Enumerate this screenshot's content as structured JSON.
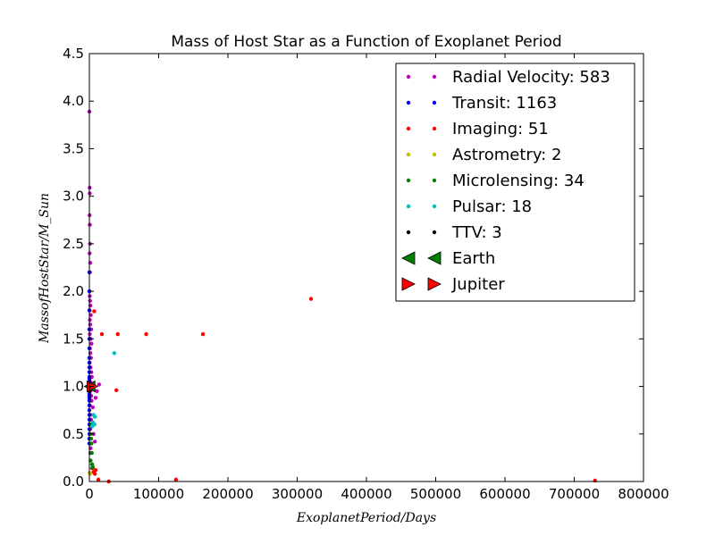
{
  "chart_data": {
    "type": "scatter",
    "title": "Mass of Host Star as a Function of Exoplanet Period",
    "xlabel": "ExoplanetPeriod/Days",
    "ylabel": "MassofHostStar/M_Sun",
    "xlim": [
      0,
      800000
    ],
    "ylim": [
      0.0,
      4.5
    ],
    "grid": false,
    "legend_position": "top-right",
    "x_ticks": [
      0,
      100000,
      200000,
      300000,
      400000,
      500000,
      600000,
      700000,
      800000
    ],
    "x_tick_labels": [
      "0",
      "100000",
      "200000",
      "300000",
      "400000",
      "500000",
      "600000",
      "700000",
      "800000"
    ],
    "y_ticks": [
      0.0,
      0.5,
      1.0,
      1.5,
      2.0,
      2.5,
      3.0,
      3.5,
      4.0,
      4.5
    ],
    "y_tick_labels": [
      "0.0",
      "0.5",
      "1.0",
      "1.5",
      "2.0",
      "2.5",
      "3.0",
      "3.5",
      "4.0",
      "4.5"
    ],
    "series": [
      {
        "name": "Radial Velocity",
        "legend_label": "Radial Velocity: 583",
        "color": "#bf00bf",
        "marker": "circle",
        "points": [
          [
            50,
            3.89
          ],
          [
            500,
            3.09
          ],
          [
            600,
            3.03
          ],
          [
            350,
            2.8
          ],
          [
            700,
            2.7
          ],
          [
            900,
            2.5
          ],
          [
            400,
            2.4
          ],
          [
            1200,
            2.3
          ],
          [
            800,
            2.2
          ],
          [
            300,
            2.0
          ],
          [
            600,
            1.95
          ],
          [
            1000,
            1.9
          ],
          [
            1500,
            1.85
          ],
          [
            450,
            1.8
          ],
          [
            2000,
            1.75
          ],
          [
            800,
            1.7
          ],
          [
            1200,
            1.65
          ],
          [
            2500,
            1.6
          ],
          [
            650,
            1.55
          ],
          [
            1800,
            1.5
          ],
          [
            3000,
            1.45
          ],
          [
            900,
            1.4
          ],
          [
            1400,
            1.35
          ],
          [
            2200,
            1.3
          ],
          [
            500,
            1.25
          ],
          [
            1700,
            1.2
          ],
          [
            2800,
            1.15
          ],
          [
            3500,
            1.1
          ],
          [
            1000,
            1.05
          ],
          [
            2000,
            1.0
          ],
          [
            4000,
            0.98
          ],
          [
            1300,
            0.95
          ],
          [
            2600,
            0.9
          ],
          [
            3200,
            0.85
          ],
          [
            800,
            0.8
          ],
          [
            5000,
            0.78
          ],
          [
            1500,
            0.7
          ],
          [
            2400,
            0.65
          ],
          [
            3000,
            0.6
          ],
          [
            1100,
            0.55
          ],
          [
            6000,
            0.5
          ],
          [
            8000,
            0.42
          ],
          [
            1800,
            0.35
          ],
          [
            1400,
            0.3
          ],
          [
            14000,
            1.02
          ],
          [
            11000,
            0.95
          ],
          [
            9000,
            0.88
          ]
        ]
      },
      {
        "name": "Transit",
        "legend_label": "Transit: 1163",
        "color": "#0000ff",
        "marker": "circle",
        "points": [
          [
            5,
            2.2
          ],
          [
            10,
            2.0
          ],
          [
            15,
            1.8
          ],
          [
            8,
            1.6
          ],
          [
            20,
            1.5
          ],
          [
            30,
            1.4
          ],
          [
            12,
            1.3
          ],
          [
            25,
            1.25
          ],
          [
            40,
            1.2
          ],
          [
            6,
            1.15
          ],
          [
            18,
            1.1
          ],
          [
            35,
            1.05
          ],
          [
            50,
            1.0
          ],
          [
            9,
            0.95
          ],
          [
            22,
            0.9
          ],
          [
            45,
            0.85
          ],
          [
            60,
            0.8
          ],
          [
            14,
            0.75
          ],
          [
            28,
            0.7
          ],
          [
            70,
            0.65
          ],
          [
            11,
            0.6
          ],
          [
            33,
            0.55
          ],
          [
            80,
            0.5
          ],
          [
            16,
            0.45
          ],
          [
            42,
            0.4
          ],
          [
            7,
            1.08
          ],
          [
            27,
            0.98
          ],
          [
            55,
            0.92
          ],
          [
            19,
            0.88
          ]
        ]
      },
      {
        "name": "Imaging",
        "legend_label": "Imaging: 51",
        "color": "#ff0000",
        "marker": "circle",
        "points": [
          [
            320000,
            1.92
          ],
          [
            164000,
            1.55
          ],
          [
            82000,
            1.55
          ],
          [
            41000,
            1.55
          ],
          [
            18000,
            1.55
          ],
          [
            39000,
            0.96
          ],
          [
            7000,
            1.79
          ],
          [
            125000,
            0.02
          ],
          [
            730000,
            0.01
          ],
          [
            28000,
            0.0
          ],
          [
            13000,
            0.02
          ],
          [
            9000,
            0.12
          ],
          [
            6000,
            0.1
          ],
          [
            4000,
            0.14
          ],
          [
            8000,
            0.08
          ],
          [
            5000,
            1.0
          ],
          [
            3000,
            0.97
          ]
        ]
      },
      {
        "name": "Astrometry",
        "legend_label": "Astrometry: 2",
        "color": "#bfbf00",
        "marker": "circle",
        "points": [
          [
            250,
            0.09
          ],
          [
            1000,
            0.08
          ]
        ]
      },
      {
        "name": "Microlensing",
        "legend_label": "Microlensing: 34",
        "color": "#008000",
        "marker": "circle",
        "points": [
          [
            1500,
            0.5
          ],
          [
            2500,
            0.45
          ],
          [
            3500,
            0.3
          ],
          [
            1800,
            0.22
          ],
          [
            4000,
            0.18
          ],
          [
            2200,
            0.6
          ],
          [
            5000,
            0.15
          ],
          [
            3000,
            0.4
          ]
        ]
      },
      {
        "name": "Pulsar",
        "legend_label": "Pulsar: 18",
        "color": "#00bfbf",
        "marker": "circle",
        "points": [
          [
            36000,
            1.35
          ],
          [
            6000,
            0.7
          ],
          [
            8000,
            0.68
          ],
          [
            5500,
            0.62
          ],
          [
            7500,
            0.6
          ],
          [
            4000,
            0.58
          ]
        ]
      },
      {
        "name": "TTV",
        "legend_label": "TTV: 3",
        "color": "#000000",
        "marker": "circle",
        "points": [
          [
            100,
            1.0
          ],
          [
            200,
            0.95
          ],
          [
            150,
            1.02
          ]
        ]
      },
      {
        "name": "Earth",
        "legend_label": "Earth",
        "color": "#008000",
        "marker": "triangle-left",
        "points": [
          [
            365,
            1.0
          ]
        ]
      },
      {
        "name": "Jupiter",
        "legend_label": "Jupiter",
        "color": "#ff0000",
        "marker": "triangle-right",
        "points": [
          [
            4333,
            1.0
          ]
        ]
      }
    ]
  }
}
